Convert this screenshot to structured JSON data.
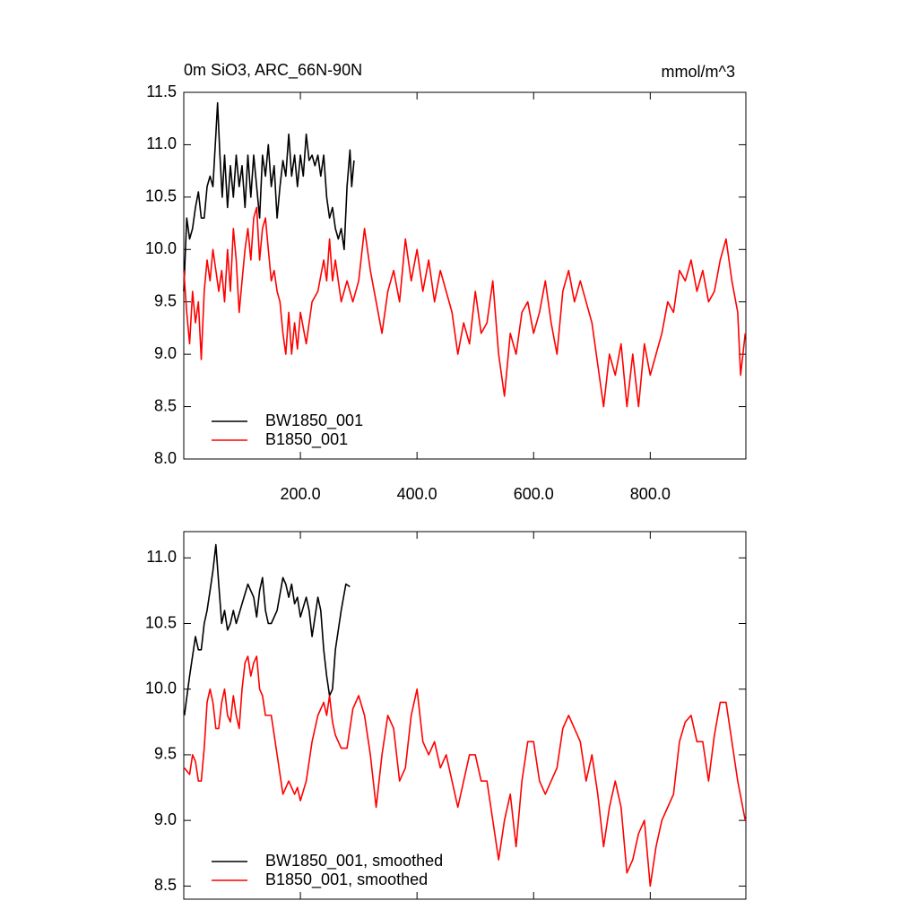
{
  "chart_data": [
    {
      "type": "line",
      "title": "0m SiO3, ARC_66N-90N",
      "units": "mmol/m^3",
      "xlim": [
        0,
        964
      ],
      "ylim": [
        8.0,
        11.5
      ],
      "xticks": [
        {
          "value": 200,
          "label": "200.0"
        },
        {
          "value": 400,
          "label": "400.0"
        },
        {
          "value": 600,
          "label": "600.0"
        },
        {
          "value": 800,
          "label": "800.0"
        }
      ],
      "yticks": [
        {
          "value": 8.0,
          "label": "8.0"
        },
        {
          "value": 8.5,
          "label": "8.5"
        },
        {
          "value": 9.0,
          "label": "9.0"
        },
        {
          "value": 9.5,
          "label": "9.5"
        },
        {
          "value": 10.0,
          "label": "10.0"
        },
        {
          "value": 10.5,
          "label": "10.5"
        },
        {
          "value": 11.0,
          "label": "11.0"
        },
        {
          "value": 11.5,
          "label": "11.5"
        }
      ],
      "series": [
        {
          "name": "BW1850_001",
          "color": "#000000",
          "x": [
            0,
            5,
            10,
            15,
            20,
            25,
            30,
            35,
            40,
            45,
            50,
            55,
            58,
            62,
            66,
            70,
            75,
            80,
            85,
            90,
            95,
            100,
            105,
            110,
            115,
            120,
            125,
            130,
            135,
            140,
            145,
            150,
            155,
            160,
            165,
            170,
            175,
            180,
            185,
            190,
            195,
            200,
            205,
            210,
            215,
            220,
            225,
            230,
            235,
            240,
            245,
            250,
            255,
            260,
            265,
            270,
            275,
            280,
            285,
            288,
            292
          ],
          "values": [
            9.6,
            10.3,
            10.1,
            10.2,
            10.4,
            10.55,
            10.3,
            10.3,
            10.6,
            10.7,
            10.6,
            11.1,
            11.4,
            10.9,
            10.5,
            10.9,
            10.4,
            10.8,
            10.5,
            10.9,
            10.6,
            10.8,
            10.4,
            10.9,
            10.5,
            10.9,
            10.6,
            10.3,
            10.9,
            10.7,
            11.0,
            10.6,
            10.8,
            10.3,
            10.6,
            10.85,
            10.7,
            11.1,
            10.7,
            10.9,
            10.6,
            10.9,
            10.7,
            11.1,
            10.85,
            10.9,
            10.8,
            10.9,
            10.7,
            10.9,
            10.5,
            10.3,
            10.4,
            10.2,
            10.1,
            10.2,
            10.0,
            10.6,
            10.95,
            10.6,
            10.85
          ]
        },
        {
          "name": "B1850_001",
          "color": "#ff0000",
          "x": [
            0,
            5,
            10,
            15,
            20,
            25,
            30,
            35,
            40,
            45,
            50,
            55,
            60,
            65,
            70,
            75,
            80,
            85,
            90,
            95,
            100,
            105,
            110,
            115,
            120,
            125,
            130,
            135,
            140,
            145,
            150,
            155,
            160,
            165,
            170,
            175,
            180,
            185,
            190,
            195,
            200,
            210,
            220,
            230,
            240,
            245,
            250,
            255,
            260,
            270,
            280,
            290,
            300,
            310,
            320,
            330,
            340,
            350,
            360,
            370,
            380,
            390,
            400,
            410,
            420,
            430,
            440,
            450,
            460,
            470,
            480,
            490,
            500,
            510,
            520,
            530,
            540,
            550,
            560,
            570,
            580,
            590,
            600,
            610,
            620,
            630,
            640,
            650,
            660,
            670,
            680,
            690,
            700,
            710,
            720,
            730,
            740,
            750,
            760,
            770,
            780,
            790,
            800,
            810,
            820,
            830,
            840,
            850,
            860,
            870,
            880,
            890,
            900,
            910,
            920,
            930,
            940,
            950,
            955,
            963
          ],
          "values": [
            9.8,
            9.4,
            9.1,
            9.6,
            9.3,
            9.5,
            8.95,
            9.6,
            9.9,
            9.7,
            10.0,
            9.8,
            9.6,
            9.8,
            9.5,
            10.0,
            9.6,
            10.2,
            9.9,
            9.4,
            9.7,
            10.0,
            10.2,
            9.9,
            10.3,
            10.4,
            9.9,
            10.2,
            10.3,
            10.0,
            9.7,
            9.8,
            9.6,
            9.5,
            9.2,
            9.0,
            9.4,
            9.0,
            9.3,
            9.05,
            9.4,
            9.1,
            9.5,
            9.6,
            9.9,
            9.7,
            10.1,
            9.7,
            9.9,
            9.5,
            9.7,
            9.5,
            9.7,
            10.2,
            9.8,
            9.5,
            9.2,
            9.6,
            9.8,
            9.5,
            10.1,
            9.7,
            10.0,
            9.6,
            9.9,
            9.5,
            9.8,
            9.6,
            9.4,
            9.0,
            9.3,
            9.1,
            9.6,
            9.2,
            9.3,
            9.7,
            9.0,
            8.6,
            9.2,
            9.0,
            9.4,
            9.5,
            9.2,
            9.4,
            9.7,
            9.3,
            9.0,
            9.6,
            9.8,
            9.5,
            9.7,
            9.5,
            9.3,
            8.9,
            8.5,
            9.0,
            8.8,
            9.1,
            8.5,
            9.0,
            8.5,
            9.1,
            8.8,
            9.0,
            9.2,
            9.5,
            9.4,
            9.8,
            9.7,
            9.9,
            9.6,
            9.8,
            9.5,
            9.6,
            9.9,
            10.1,
            9.7,
            9.4,
            8.8,
            9.2
          ]
        }
      ]
    },
    {
      "type": "line",
      "xlim": [
        0,
        964
      ],
      "ylim": [
        8.4,
        11.2
      ],
      "xticks": [
        200,
        400,
        600,
        800
      ],
      "yticks": [
        {
          "value": 8.5,
          "label": "8.5"
        },
        {
          "value": 9.0,
          "label": "9.0"
        },
        {
          "value": 9.5,
          "label": "9.5"
        },
        {
          "value": 10.0,
          "label": "10.0"
        },
        {
          "value": 10.5,
          "label": "10.5"
        },
        {
          "value": 11.0,
          "label": "11.0"
        }
      ],
      "series": [
        {
          "name": "BW1850_001, smoothed",
          "color": "#000000",
          "x": [
            1,
            10,
            20,
            25,
            30,
            35,
            40,
            45,
            50,
            55,
            60,
            65,
            70,
            75,
            80,
            85,
            90,
            100,
            110,
            120,
            125,
            130,
            135,
            140,
            145,
            150,
            160,
            170,
            175,
            180,
            185,
            190,
            195,
            200,
            210,
            215,
            220,
            230,
            235,
            240,
            245,
            250,
            255,
            260,
            270,
            278,
            285
          ],
          "values": [
            9.8,
            10.1,
            10.4,
            10.3,
            10.3,
            10.5,
            10.6,
            10.75,
            10.9,
            11.1,
            10.8,
            10.5,
            10.6,
            10.45,
            10.5,
            10.6,
            10.5,
            10.65,
            10.8,
            10.7,
            10.55,
            10.75,
            10.85,
            10.6,
            10.5,
            10.5,
            10.6,
            10.85,
            10.8,
            10.7,
            10.8,
            10.65,
            10.7,
            10.55,
            10.7,
            10.6,
            10.4,
            10.7,
            10.6,
            10.3,
            10.1,
            9.95,
            10.0,
            10.3,
            10.6,
            10.8,
            10.78
          ]
        },
        {
          "name": "B1850_001, smoothed",
          "color": "#ff0000",
          "x": [
            1,
            10,
            15,
            20,
            25,
            30,
            35,
            40,
            45,
            50,
            55,
            60,
            65,
            70,
            75,
            80,
            85,
            90,
            95,
            100,
            105,
            110,
            115,
            120,
            125,
            130,
            135,
            140,
            150,
            160,
            170,
            180,
            190,
            195,
            200,
            210,
            220,
            230,
            240,
            245,
            250,
            255,
            260,
            270,
            280,
            290,
            300,
            310,
            320,
            330,
            340,
            350,
            360,
            370,
            380,
            390,
            400,
            410,
            420,
            430,
            440,
            450,
            460,
            470,
            480,
            490,
            500,
            510,
            520,
            530,
            540,
            550,
            560,
            570,
            580,
            590,
            600,
            610,
            620,
            630,
            640,
            650,
            660,
            670,
            680,
            690,
            700,
            710,
            720,
            730,
            740,
            750,
            760,
            770,
            780,
            790,
            800,
            810,
            820,
            830,
            840,
            850,
            860,
            870,
            880,
            890,
            900,
            910,
            920,
            930,
            940,
            950,
            963
          ],
          "values": [
            9.4,
            9.35,
            9.5,
            9.45,
            9.3,
            9.3,
            9.55,
            9.9,
            10.0,
            9.9,
            9.7,
            9.7,
            9.9,
            10.0,
            9.8,
            9.75,
            9.95,
            9.8,
            9.7,
            10.0,
            10.2,
            10.25,
            10.1,
            10.2,
            10.25,
            10.0,
            9.95,
            9.8,
            9.8,
            9.5,
            9.2,
            9.3,
            9.2,
            9.25,
            9.15,
            9.3,
            9.6,
            9.8,
            9.9,
            9.8,
            9.95,
            9.75,
            9.65,
            9.55,
            9.55,
            9.85,
            9.95,
            9.8,
            9.5,
            9.1,
            9.5,
            9.8,
            9.7,
            9.3,
            9.4,
            9.8,
            10.0,
            9.6,
            9.5,
            9.6,
            9.4,
            9.5,
            9.3,
            9.1,
            9.3,
            9.5,
            9.5,
            9.3,
            9.3,
            9.0,
            8.7,
            9.0,
            9.2,
            8.8,
            9.3,
            9.6,
            9.6,
            9.3,
            9.2,
            9.3,
            9.4,
            9.7,
            9.8,
            9.7,
            9.6,
            9.3,
            9.5,
            9.2,
            8.8,
            9.1,
            9.3,
            9.1,
            8.6,
            8.7,
            8.9,
            9.0,
            8.5,
            8.8,
            9.0,
            9.1,
            9.2,
            9.6,
            9.75,
            9.8,
            9.6,
            9.6,
            9.3,
            9.65,
            9.9,
            9.9,
            9.6,
            9.3,
            9.0
          ]
        }
      ]
    }
  ]
}
